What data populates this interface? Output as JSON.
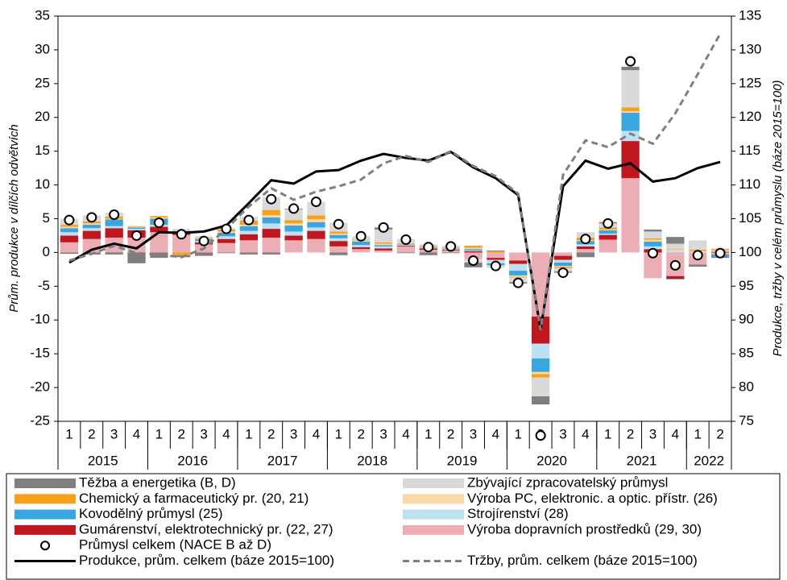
{
  "chart_data": {
    "type": "bar",
    "y_label": "Prům. produkce v dílčích odvětvích",
    "y2_label": "Produkce, tržby v celém průmyslu (báze 2015=100)",
    "categories": [
      "1",
      "2",
      "3",
      "4",
      "1",
      "2",
      "3",
      "4",
      "1",
      "2",
      "3",
      "4",
      "1",
      "2",
      "3",
      "4",
      "1",
      "2",
      "3",
      "4",
      "1",
      "2",
      "3",
      "4",
      "1",
      "2",
      "3",
      "4",
      "1",
      "2"
    ],
    "years": [
      "2015",
      "2016",
      "2017",
      "2018",
      "2019",
      "2020",
      "2021",
      "2022"
    ],
    "ylim": [
      -25,
      35
    ],
    "yticks": [
      -25,
      -20,
      -15,
      -10,
      -5,
      0,
      5,
      10,
      15,
      20,
      25,
      30,
      35
    ],
    "y2lim": [
      75,
      135
    ],
    "y2ticks": [
      75,
      80,
      85,
      90,
      95,
      100,
      105,
      110,
      115,
      120,
      125,
      130,
      135
    ],
    "series": [
      {
        "name": "Výroba dopravních prostředků (29, 30)",
        "color": "#eaaeb4",
        "values": [
          1.5,
          2.0,
          2.2,
          2.2,
          3.0,
          2.6,
          1.2,
          1.4,
          1.8,
          2.2,
          1.8,
          2.0,
          0.9,
          0.5,
          0.3,
          0.9,
          0.4,
          0.3,
          -1.0,
          -0.8,
          -1.2,
          -9.5,
          -0.5,
          0.5,
          1.9,
          11.0,
          -3.8,
          -3.5,
          -1.8,
          -0.3
        ]
      },
      {
        "name": "Gumárenství, elektrotechnický pr. (22, 27)",
        "color": "#c0161d",
        "values": [
          1.0,
          1.2,
          1.4,
          1.1,
          0.8,
          0.2,
          0.3,
          0.6,
          0.9,
          1.3,
          0.7,
          1.2,
          0.8,
          0.3,
          0.3,
          0.1,
          0.2,
          0.1,
          0.2,
          -0.3,
          -0.5,
          -4.0,
          -0.6,
          0.4,
          0.7,
          5.5,
          0.5,
          -0.4,
          0,
          0.1
        ]
      },
      {
        "name": "Strojírenství (28)",
        "color": "#bde0f3",
        "values": [
          0.5,
          0.4,
          0.3,
          0.2,
          0.3,
          0.2,
          0.2,
          0.4,
          0.5,
          0.8,
          0.6,
          0.5,
          0.4,
          0.3,
          0.3,
          0.1,
          0.1,
          0.1,
          0.1,
          -0.5,
          -1.0,
          -2.2,
          -0.4,
          0.3,
          0.2,
          1.5,
          0.4,
          0.3,
          0.1,
          0.1
        ]
      },
      {
        "name": "Kovodělný průmysl (25)",
        "color": "#3aa6e0",
        "values": [
          0.6,
          0.5,
          1.0,
          0.2,
          0.9,
          0.2,
          0.3,
          0.5,
          0.7,
          0.9,
          0.9,
          0.8,
          0.5,
          0.5,
          0.2,
          0.1,
          0.1,
          0.1,
          0.2,
          -0.3,
          -0.7,
          -2.0,
          -0.5,
          0.5,
          0.5,
          2.7,
          0.7,
          -0.1,
          0,
          -0.3
        ]
      },
      {
        "name": "Výroba PC, elektronic. a optic. přístr. (26)",
        "color": "#fbd9a7",
        "values": [
          0.2,
          0.2,
          0.1,
          0.1,
          0.2,
          0.1,
          0.1,
          0.2,
          0.2,
          0.3,
          0.3,
          0.4,
          0.2,
          0.1,
          0.2,
          0.1,
          0.1,
          0.1,
          0.2,
          0,
          -0.2,
          -0.3,
          -0.1,
          0.1,
          0.1,
          0.2,
          0.3,
          0.1,
          0.1,
          0.1
        ]
      },
      {
        "name": "Chemický a farmaceutický pr. (20, 21)",
        "color": "#f4a21d",
        "values": [
          0.3,
          0.3,
          0.3,
          0.1,
          0.2,
          -0.4,
          0.1,
          0.3,
          0.6,
          0.8,
          0.5,
          0.6,
          0.3,
          0.1,
          0.2,
          0.1,
          0.1,
          0.1,
          0.3,
          0.2,
          -0.1,
          -0.5,
          -0.2,
          0.4,
          0.3,
          0.6,
          0.2,
          0.1,
          0.2,
          0.2
        ]
      },
      {
        "name": "Zbývající zpracovatelský průmysl",
        "color": "#d9d9d9",
        "values": [
          0.9,
          0.9,
          0.6,
          0,
          0,
          0.2,
          0.2,
          0.2,
          0.6,
          1.9,
          1.6,
          2.0,
          1.3,
          0.6,
          1.9,
          0.6,
          0.2,
          0.2,
          -0.5,
          -0.4,
          -0.7,
          -2.8,
          -0.5,
          0.8,
          0.6,
          5.5,
          1.0,
          0.8,
          1.4,
          0.1
        ]
      },
      {
        "name": "Těžba a energetika (B, D)",
        "color": "#7f7f7f",
        "values": [
          -0.2,
          -0.3,
          -0.3,
          -1.6,
          -0.8,
          -0.3,
          -0.5,
          -0.1,
          -0.3,
          -0.3,
          0.1,
          0,
          -0.4,
          0,
          0.3,
          -0.1,
          -0.4,
          -0.1,
          -0.7,
          0.1,
          -0.2,
          -1.2,
          -0.2,
          -0.7,
          0.2,
          0.5,
          0.3,
          1.0,
          -0.3,
          -0.2
        ]
      }
    ],
    "total": {
      "name": "Průmysl celkem (NACE B až D)",
      "values": [
        4.8,
        5.2,
        5.6,
        2.5,
        4.4,
        2.7,
        1.7,
        3.5,
        4.8,
        7.9,
        6.5,
        7.5,
        4.2,
        2.4,
        3.7,
        1.9,
        0.8,
        0.9,
        -1.2,
        -2.0,
        -4.5,
        -27.1,
        -3.0,
        2.0,
        4.3,
        28.3,
        -0.1,
        -1.9,
        -0.4,
        -0.1
      ]
    },
    "lines": [
      {
        "name": "Produkce, prům. celkem (báze 2015=100)",
        "color": "#000000",
        "axis": "y2",
        "dashed": false,
        "values": [
          98.5,
          100.4,
          101.3,
          100.6,
          103.0,
          102.9,
          103.1,
          104.0,
          107.3,
          110.7,
          110.2,
          112.0,
          112.2,
          113.6,
          114.6,
          114.0,
          113.6,
          114.9,
          112.6,
          111.0,
          108.5,
          88.6,
          109.8,
          113.6,
          112.4,
          113.2,
          110.5,
          111.0,
          112.5,
          113.4
        ]
      },
      {
        "name": "Tržby, prům. celkem (báze 2015=100)",
        "color": "#808080",
        "axis": "y2",
        "dashed": true,
        "values": [
          98.8,
          99.8,
          101.0,
          99.9,
          99.7,
          99.3,
          100.6,
          103.5,
          106.8,
          109.5,
          107.8,
          109.0,
          109.8,
          110.8,
          113.2,
          114.3,
          113.4,
          115.0,
          112.8,
          111.3,
          108.7,
          88.5,
          111.5,
          116.6,
          115.6,
          117.6,
          116.1,
          120.6,
          126.4,
          132.4
        ]
      }
    ]
  }
}
